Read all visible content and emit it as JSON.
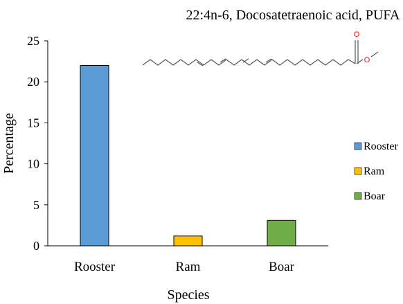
{
  "chart_data": {
    "type": "bar",
    "title": "22:4n-6, Docosatetraenoic acid, PUFA",
    "xlabel": "Species",
    "ylabel": "Percentage",
    "categories": [
      "Rooster",
      "Ram",
      "Boar"
    ],
    "values": [
      22.0,
      1.2,
      3.1
    ],
    "colors": [
      "#5B9BD5",
      "#FFC000",
      "#70AD47"
    ],
    "ylim": [
      0,
      25
    ],
    "yticks": [
      0,
      5,
      10,
      15,
      20,
      25
    ],
    "grid": false,
    "legend": {
      "position": "right",
      "entries": [
        "Rooster",
        "Ram",
        "Boar"
      ]
    },
    "annotation": {
      "type": "skeletal-structure-icon",
      "atom_labels": [
        "O",
        "O"
      ],
      "atom_color": "#ff0000"
    }
  }
}
